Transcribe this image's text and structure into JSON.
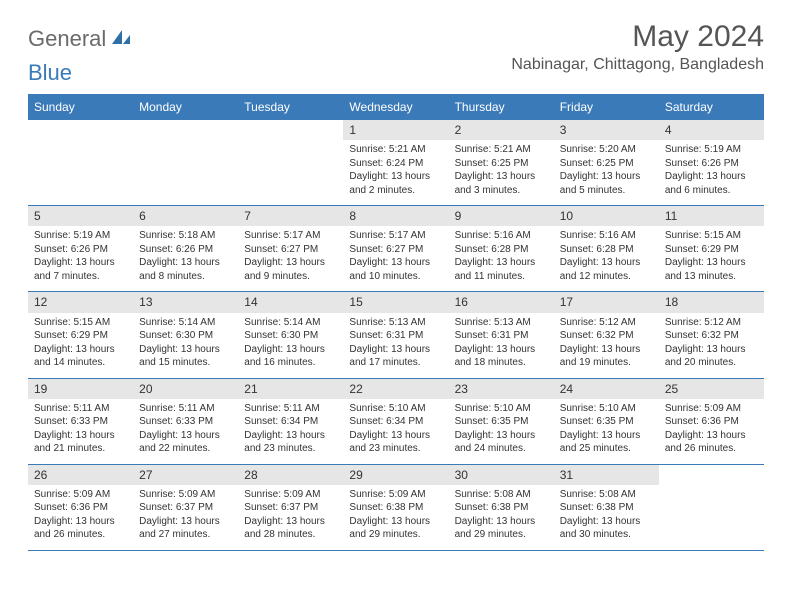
{
  "brand": {
    "text_general": "General",
    "text_blue": "Blue",
    "icon_color": "#2f6fa8"
  },
  "title": {
    "month": "May 2024",
    "location": "Nabinagar, Chittagong, Bangladesh"
  },
  "colors": {
    "header_bg": "#3a7ab8",
    "header_text": "#ffffff",
    "row_border": "#3a7ab8",
    "daynum_bg": "#e6e6e6",
    "body_text": "#333333",
    "title_text": "#555555"
  },
  "weekdays": [
    "Sunday",
    "Monday",
    "Tuesday",
    "Wednesday",
    "Thursday",
    "Friday",
    "Saturday"
  ],
  "weeks": [
    [
      {
        "day": "",
        "sunrise": "",
        "sunset": "",
        "daylight": ""
      },
      {
        "day": "",
        "sunrise": "",
        "sunset": "",
        "daylight": ""
      },
      {
        "day": "",
        "sunrise": "",
        "sunset": "",
        "daylight": ""
      },
      {
        "day": "1",
        "sunrise": "Sunrise: 5:21 AM",
        "sunset": "Sunset: 6:24 PM",
        "daylight": "Daylight: 13 hours and 2 minutes."
      },
      {
        "day": "2",
        "sunrise": "Sunrise: 5:21 AM",
        "sunset": "Sunset: 6:25 PM",
        "daylight": "Daylight: 13 hours and 3 minutes."
      },
      {
        "day": "3",
        "sunrise": "Sunrise: 5:20 AM",
        "sunset": "Sunset: 6:25 PM",
        "daylight": "Daylight: 13 hours and 5 minutes."
      },
      {
        "day": "4",
        "sunrise": "Sunrise: 5:19 AM",
        "sunset": "Sunset: 6:26 PM",
        "daylight": "Daylight: 13 hours and 6 minutes."
      }
    ],
    [
      {
        "day": "5",
        "sunrise": "Sunrise: 5:19 AM",
        "sunset": "Sunset: 6:26 PM",
        "daylight": "Daylight: 13 hours and 7 minutes."
      },
      {
        "day": "6",
        "sunrise": "Sunrise: 5:18 AM",
        "sunset": "Sunset: 6:26 PM",
        "daylight": "Daylight: 13 hours and 8 minutes."
      },
      {
        "day": "7",
        "sunrise": "Sunrise: 5:17 AM",
        "sunset": "Sunset: 6:27 PM",
        "daylight": "Daylight: 13 hours and 9 minutes."
      },
      {
        "day": "8",
        "sunrise": "Sunrise: 5:17 AM",
        "sunset": "Sunset: 6:27 PM",
        "daylight": "Daylight: 13 hours and 10 minutes."
      },
      {
        "day": "9",
        "sunrise": "Sunrise: 5:16 AM",
        "sunset": "Sunset: 6:28 PM",
        "daylight": "Daylight: 13 hours and 11 minutes."
      },
      {
        "day": "10",
        "sunrise": "Sunrise: 5:16 AM",
        "sunset": "Sunset: 6:28 PM",
        "daylight": "Daylight: 13 hours and 12 minutes."
      },
      {
        "day": "11",
        "sunrise": "Sunrise: 5:15 AM",
        "sunset": "Sunset: 6:29 PM",
        "daylight": "Daylight: 13 hours and 13 minutes."
      }
    ],
    [
      {
        "day": "12",
        "sunrise": "Sunrise: 5:15 AM",
        "sunset": "Sunset: 6:29 PM",
        "daylight": "Daylight: 13 hours and 14 minutes."
      },
      {
        "day": "13",
        "sunrise": "Sunrise: 5:14 AM",
        "sunset": "Sunset: 6:30 PM",
        "daylight": "Daylight: 13 hours and 15 minutes."
      },
      {
        "day": "14",
        "sunrise": "Sunrise: 5:14 AM",
        "sunset": "Sunset: 6:30 PM",
        "daylight": "Daylight: 13 hours and 16 minutes."
      },
      {
        "day": "15",
        "sunrise": "Sunrise: 5:13 AM",
        "sunset": "Sunset: 6:31 PM",
        "daylight": "Daylight: 13 hours and 17 minutes."
      },
      {
        "day": "16",
        "sunrise": "Sunrise: 5:13 AM",
        "sunset": "Sunset: 6:31 PM",
        "daylight": "Daylight: 13 hours and 18 minutes."
      },
      {
        "day": "17",
        "sunrise": "Sunrise: 5:12 AM",
        "sunset": "Sunset: 6:32 PM",
        "daylight": "Daylight: 13 hours and 19 minutes."
      },
      {
        "day": "18",
        "sunrise": "Sunrise: 5:12 AM",
        "sunset": "Sunset: 6:32 PM",
        "daylight": "Daylight: 13 hours and 20 minutes."
      }
    ],
    [
      {
        "day": "19",
        "sunrise": "Sunrise: 5:11 AM",
        "sunset": "Sunset: 6:33 PM",
        "daylight": "Daylight: 13 hours and 21 minutes."
      },
      {
        "day": "20",
        "sunrise": "Sunrise: 5:11 AM",
        "sunset": "Sunset: 6:33 PM",
        "daylight": "Daylight: 13 hours and 22 minutes."
      },
      {
        "day": "21",
        "sunrise": "Sunrise: 5:11 AM",
        "sunset": "Sunset: 6:34 PM",
        "daylight": "Daylight: 13 hours and 23 minutes."
      },
      {
        "day": "22",
        "sunrise": "Sunrise: 5:10 AM",
        "sunset": "Sunset: 6:34 PM",
        "daylight": "Daylight: 13 hours and 23 minutes."
      },
      {
        "day": "23",
        "sunrise": "Sunrise: 5:10 AM",
        "sunset": "Sunset: 6:35 PM",
        "daylight": "Daylight: 13 hours and 24 minutes."
      },
      {
        "day": "24",
        "sunrise": "Sunrise: 5:10 AM",
        "sunset": "Sunset: 6:35 PM",
        "daylight": "Daylight: 13 hours and 25 minutes."
      },
      {
        "day": "25",
        "sunrise": "Sunrise: 5:09 AM",
        "sunset": "Sunset: 6:36 PM",
        "daylight": "Daylight: 13 hours and 26 minutes."
      }
    ],
    [
      {
        "day": "26",
        "sunrise": "Sunrise: 5:09 AM",
        "sunset": "Sunset: 6:36 PM",
        "daylight": "Daylight: 13 hours and 26 minutes."
      },
      {
        "day": "27",
        "sunrise": "Sunrise: 5:09 AM",
        "sunset": "Sunset: 6:37 PM",
        "daylight": "Daylight: 13 hours and 27 minutes."
      },
      {
        "day": "28",
        "sunrise": "Sunrise: 5:09 AM",
        "sunset": "Sunset: 6:37 PM",
        "daylight": "Daylight: 13 hours and 28 minutes."
      },
      {
        "day": "29",
        "sunrise": "Sunrise: 5:09 AM",
        "sunset": "Sunset: 6:38 PM",
        "daylight": "Daylight: 13 hours and 29 minutes."
      },
      {
        "day": "30",
        "sunrise": "Sunrise: 5:08 AM",
        "sunset": "Sunset: 6:38 PM",
        "daylight": "Daylight: 13 hours and 29 minutes."
      },
      {
        "day": "31",
        "sunrise": "Sunrise: 5:08 AM",
        "sunset": "Sunset: 6:38 PM",
        "daylight": "Daylight: 13 hours and 30 minutes."
      },
      {
        "day": "",
        "sunrise": "",
        "sunset": "",
        "daylight": ""
      }
    ]
  ]
}
